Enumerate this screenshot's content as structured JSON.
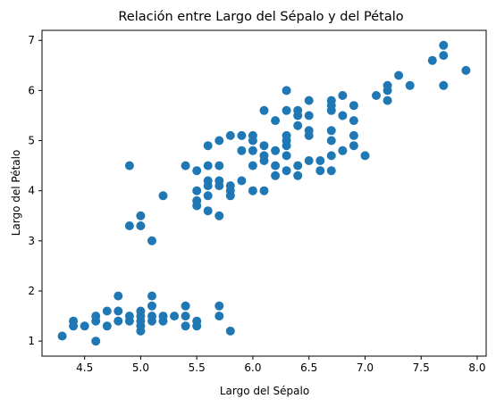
{
  "chart_data": {
    "type": "scatter",
    "title": "Relación entre Largo del Sépalo y del Pétalo",
    "xlabel": "Largo del Sépalo",
    "ylabel": "Largo del Pétalo",
    "xlim": [
      4.12,
      8.08
    ],
    "ylim": [
      0.7,
      7.2
    ],
    "x_ticks": [
      4.5,
      5.0,
      5.5,
      6.0,
      6.5,
      7.0,
      7.5,
      8.0
    ],
    "x_tick_labels": [
      "4.5",
      "5.0",
      "5.5",
      "6.0",
      "6.5",
      "7.0",
      "7.5",
      "8.0"
    ],
    "y_ticks": [
      1,
      2,
      3,
      4,
      5,
      6,
      7
    ],
    "y_tick_labels": [
      "1",
      "2",
      "3",
      "4",
      "5",
      "6",
      "7"
    ],
    "grid": false,
    "marker_color": "#1f77b4",
    "points": [
      [
        4.3,
        1.1
      ],
      [
        4.4,
        1.3
      ],
      [
        4.4,
        1.4
      ],
      [
        4.5,
        1.3
      ],
      [
        4.6,
        1.0
      ],
      [
        4.6,
        1.4
      ],
      [
        4.6,
        1.5
      ],
      [
        4.7,
        1.3
      ],
      [
        4.7,
        1.6
      ],
      [
        4.8,
        1.4
      ],
      [
        4.8,
        1.6
      ],
      [
        4.8,
        1.9
      ],
      [
        4.9,
        1.4
      ],
      [
        4.9,
        1.5
      ],
      [
        5.0,
        1.2
      ],
      [
        5.0,
        1.3
      ],
      [
        5.0,
        1.4
      ],
      [
        5.0,
        1.5
      ],
      [
        5.0,
        1.6
      ],
      [
        5.1,
        1.4
      ],
      [
        5.1,
        1.5
      ],
      [
        5.1,
        1.7
      ],
      [
        5.1,
        1.9
      ],
      [
        5.2,
        1.4
      ],
      [
        5.2,
        1.5
      ],
      [
        5.3,
        1.5
      ],
      [
        5.4,
        1.3
      ],
      [
        5.4,
        1.5
      ],
      [
        5.4,
        1.7
      ],
      [
        5.5,
        1.3
      ],
      [
        5.5,
        1.4
      ],
      [
        5.7,
        1.5
      ],
      [
        5.7,
        1.7
      ],
      [
        5.8,
        1.2
      ],
      [
        4.9,
        3.3
      ],
      [
        4.9,
        4.5
      ],
      [
        5.0,
        3.3
      ],
      [
        5.0,
        3.5
      ],
      [
        5.1,
        3.0
      ],
      [
        5.2,
        3.9
      ],
      [
        5.4,
        4.5
      ],
      [
        5.5,
        3.7
      ],
      [
        5.5,
        3.8
      ],
      [
        5.5,
        4.0
      ],
      [
        5.5,
        4.4
      ],
      [
        5.6,
        3.6
      ],
      [
        5.6,
        3.9
      ],
      [
        5.6,
        4.1
      ],
      [
        5.6,
        4.2
      ],
      [
        5.6,
        4.5
      ],
      [
        5.6,
        4.9
      ],
      [
        5.7,
        3.5
      ],
      [
        5.7,
        4.1
      ],
      [
        5.7,
        4.2
      ],
      [
        5.7,
        4.5
      ],
      [
        5.7,
        5.0
      ],
      [
        5.8,
        3.9
      ],
      [
        5.8,
        4.0
      ],
      [
        5.8,
        4.1
      ],
      [
        5.8,
        5.1
      ],
      [
        5.9,
        4.2
      ],
      [
        5.9,
        4.8
      ],
      [
        5.9,
        5.1
      ],
      [
        6.0,
        4.0
      ],
      [
        6.0,
        4.5
      ],
      [
        6.0,
        4.8
      ],
      [
        6.0,
        5.0
      ],
      [
        6.0,
        5.1
      ],
      [
        6.1,
        4.0
      ],
      [
        6.1,
        4.6
      ],
      [
        6.1,
        4.7
      ],
      [
        6.1,
        4.9
      ],
      [
        6.1,
        5.6
      ],
      [
        6.2,
        4.3
      ],
      [
        6.2,
        4.5
      ],
      [
        6.2,
        4.8
      ],
      [
        6.2,
        5.4
      ],
      [
        6.3,
        4.4
      ],
      [
        6.3,
        4.7
      ],
      [
        6.3,
        4.9
      ],
      [
        6.3,
        5.0
      ],
      [
        6.3,
        5.1
      ],
      [
        6.3,
        5.6
      ],
      [
        6.3,
        6.0
      ],
      [
        6.4,
        4.3
      ],
      [
        6.4,
        4.5
      ],
      [
        6.4,
        5.3
      ],
      [
        6.4,
        5.5
      ],
      [
        6.4,
        5.6
      ],
      [
        6.5,
        4.6
      ],
      [
        6.5,
        5.1
      ],
      [
        6.5,
        5.2
      ],
      [
        6.5,
        5.5
      ],
      [
        6.5,
        5.8
      ],
      [
        6.6,
        4.4
      ],
      [
        6.6,
        4.6
      ],
      [
        6.7,
        4.4
      ],
      [
        6.7,
        4.7
      ],
      [
        6.7,
        5.0
      ],
      [
        6.7,
        5.2
      ],
      [
        6.7,
        5.6
      ],
      [
        6.7,
        5.7
      ],
      [
        6.7,
        5.8
      ],
      [
        6.8,
        4.8
      ],
      [
        6.8,
        5.5
      ],
      [
        6.8,
        5.9
      ],
      [
        6.9,
        4.9
      ],
      [
        6.9,
        5.1
      ],
      [
        6.9,
        5.4
      ],
      [
        6.9,
        5.7
      ],
      [
        7.0,
        4.7
      ],
      [
        7.1,
        5.9
      ],
      [
        7.2,
        5.8
      ],
      [
        7.2,
        6.0
      ],
      [
        7.2,
        6.1
      ],
      [
        7.3,
        6.3
      ],
      [
        7.4,
        6.1
      ],
      [
        7.6,
        6.6
      ],
      [
        7.7,
        6.1
      ],
      [
        7.7,
        6.7
      ],
      [
        7.7,
        6.9
      ],
      [
        7.9,
        6.4
      ]
    ]
  }
}
